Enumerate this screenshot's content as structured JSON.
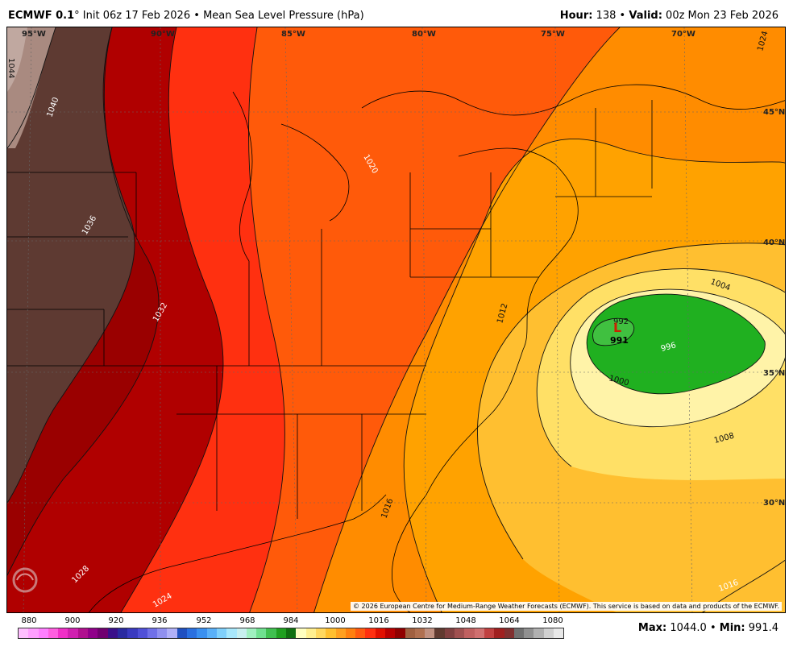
{
  "header": {
    "model": "ECMWF 0.1",
    "degree_mark": "°",
    "init_text": "Init 06z 17 Feb 2026",
    "separator": "•",
    "field": "Mean Sea Level Pressure (hPa)",
    "hour_label": "Hour:",
    "hour_value": "138",
    "valid_label": "Valid:",
    "valid_value": "00z Mon 23 Feb 2026"
  },
  "map": {
    "lon_labels": [
      "95°W",
      "90°W",
      "85°W",
      "80°W",
      "75°W",
      "70°W"
    ],
    "lat_labels": [
      "45°N",
      "40°N",
      "35°N",
      "30°N"
    ],
    "isobar_labels": [
      "1044",
      "1040",
      "1036",
      "1032",
      "1028",
      "1024",
      "1020",
      "1016",
      "1012",
      "1008",
      "1004",
      "1000",
      "996",
      "992",
      "1024",
      "1016"
    ],
    "low": {
      "symbol": "L",
      "value": "991",
      "color": "#cc2200"
    },
    "copyright": "© 2026 European Centre for Medium-Range Weather Forecasts (ECMWF). This service is based on data and products of the ECMWF.",
    "watermark": "WEATHERBELL"
  },
  "scale": {
    "labels": [
      "880",
      "900",
      "920",
      "936",
      "952",
      "968",
      "984",
      "1000",
      "1016",
      "1032",
      "1048",
      "1064",
      "1080"
    ],
    "colors": [
      "#ffbfff",
      "#ff9fff",
      "#ff7fff",
      "#ff5fe0",
      "#f030c8",
      "#d020b0",
      "#b0108f",
      "#90008a",
      "#700070",
      "#3a108a",
      "#2a2aa0",
      "#3a3ac0",
      "#5050d8",
      "#7070e8",
      "#9090f0",
      "#b0b0f8",
      "#2050c0",
      "#2a70e0",
      "#3a90f0",
      "#5ab0f8",
      "#80d0fb",
      "#a8e8fc",
      "#c8f0f0",
      "#a0f0c0",
      "#70e090",
      "#40c050",
      "#20a020",
      "#107010",
      "#ffffc0",
      "#ffef90",
      "#ffd860",
      "#ffbf30",
      "#ffa020",
      "#ff8010",
      "#ff5a10",
      "#ff3010",
      "#e01000",
      "#b80000",
      "#900000",
      "#a06040",
      "#b07050",
      "#c09080",
      "#603a30",
      "#804040",
      "#a05050",
      "#c06060",
      "#d07070",
      "#c04040",
      "#a02020",
      "#803030",
      "#707070",
      "#909090",
      "#b0b0b0",
      "#d0d0d0",
      "#e8e8e8"
    ]
  },
  "minmax": {
    "max_label": "Max:",
    "max_value": "1044.0",
    "separator": "•",
    "min_label": "Min:",
    "min_value": "991.4"
  }
}
